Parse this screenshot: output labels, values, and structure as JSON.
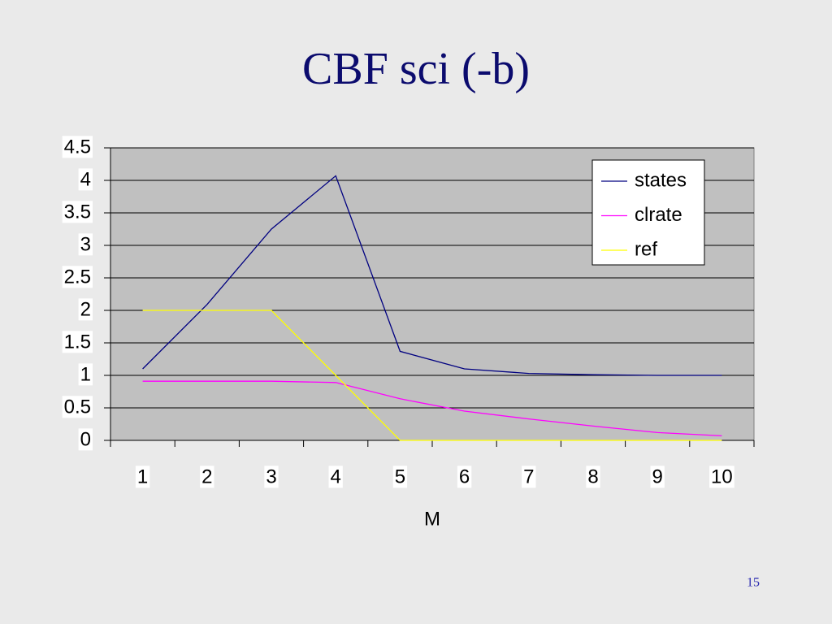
{
  "chart_data": {
    "type": "line",
    "title": "CBF sci (-b)",
    "x_label": "M",
    "categories": [
      1,
      2,
      3,
      4,
      5,
      6,
      7,
      8,
      9,
      10
    ],
    "series": [
      {
        "name": "states",
        "color": "#000080",
        "values": [
          1.1,
          2.09,
          3.25,
          4.07,
          1.37,
          1.1,
          1.03,
          1.01,
          1.0,
          1.0
        ]
      },
      {
        "name": "clrate",
        "color": "#ff00ff",
        "values": [
          0.91,
          0.91,
          0.91,
          0.89,
          0.64,
          0.45,
          0.33,
          0.22,
          0.12,
          0.07
        ]
      },
      {
        "name": "ref",
        "color": "#ffff00",
        "values": [
          2,
          2,
          2,
          1,
          0,
          0,
          0,
          0,
          0,
          0
        ]
      }
    ],
    "ylim": [
      0,
      4.5
    ],
    "yticks": [
      0,
      0.5,
      1,
      1.5,
      2,
      2.5,
      3,
      3.5,
      4,
      4.5
    ],
    "grid": true,
    "legend": "upper right"
  },
  "slide_number": 15
}
